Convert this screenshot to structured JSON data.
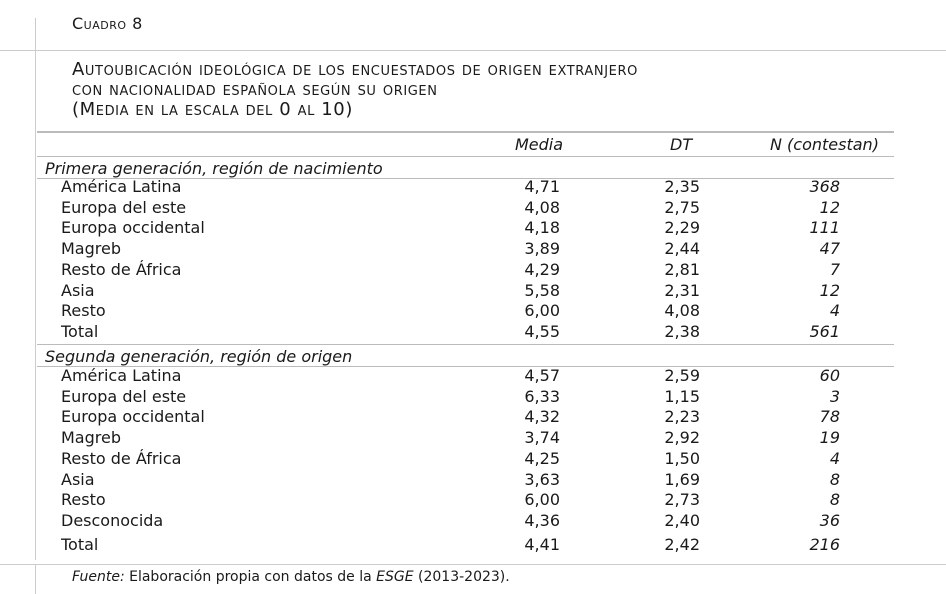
{
  "caption_label": "Cuadro 8",
  "title_lines": [
    "Autoubicación ideológica de los encuestados de origen extranjero",
    "con nacionalidad española según su origen",
    "(Media en la escala del 0 al 10)"
  ],
  "columns": {
    "media": "Media",
    "dt": "DT",
    "n": "N (contestan)"
  },
  "section1": {
    "title": "Primera generación, región de nacimiento",
    "rows": [
      {
        "label": "América Latina",
        "media": "4,71",
        "dt": "2,35",
        "n": "368"
      },
      {
        "label": "Europa del este",
        "media": "4,08",
        "dt": "2,75",
        "n": "12"
      },
      {
        "label": "Europa occidental",
        "media": "4,18",
        "dt": "2,29",
        "n": "111"
      },
      {
        "label": "Magreb",
        "media": "3,89",
        "dt": "2,44",
        "n": "47"
      },
      {
        "label": "Resto de África",
        "media": "4,29",
        "dt": "2,81",
        "n": "7"
      },
      {
        "label": "Asia",
        "media": "5,58",
        "dt": "2,31",
        "n": "12"
      },
      {
        "label": "Resto",
        "media": "6,00",
        "dt": "4,08",
        "n": "4"
      },
      {
        "label": "Total",
        "media": "4,55",
        "dt": "2,38",
        "n": "561"
      }
    ]
  },
  "section2": {
    "title": "Segunda generación, región de origen",
    "rows": [
      {
        "label": "América Latina",
        "media": "4,57",
        "dt": "2,59",
        "n": "60"
      },
      {
        "label": "Europa del este",
        "media": "6,33",
        "dt": "1,15",
        "n": "3"
      },
      {
        "label": "Europa occidental",
        "media": "4,32",
        "dt": "2,23",
        "n": "78"
      },
      {
        "label": "Magreb",
        "media": "3,74",
        "dt": "2,92",
        "n": "19"
      },
      {
        "label": "Resto de África",
        "media": "4,25",
        "dt": "1,50",
        "n": "4"
      },
      {
        "label": "Asia",
        "media": "3,63",
        "dt": "1,69",
        "n": "8"
      },
      {
        "label": "Resto",
        "media": "6,00",
        "dt": "2,73",
        "n": "8"
      },
      {
        "label": "Desconocida",
        "media": "4,36",
        "dt": "2,40",
        "n": "36"
      },
      {
        "label": "Total",
        "media": "4,41",
        "dt": "2,42",
        "n": "216"
      }
    ]
  },
  "footer": {
    "source_label": "Fuente:",
    "text_before": " Elaboración propia con datos de la ",
    "survey": "ESGE",
    "text_after": " (2013-2023)."
  }
}
